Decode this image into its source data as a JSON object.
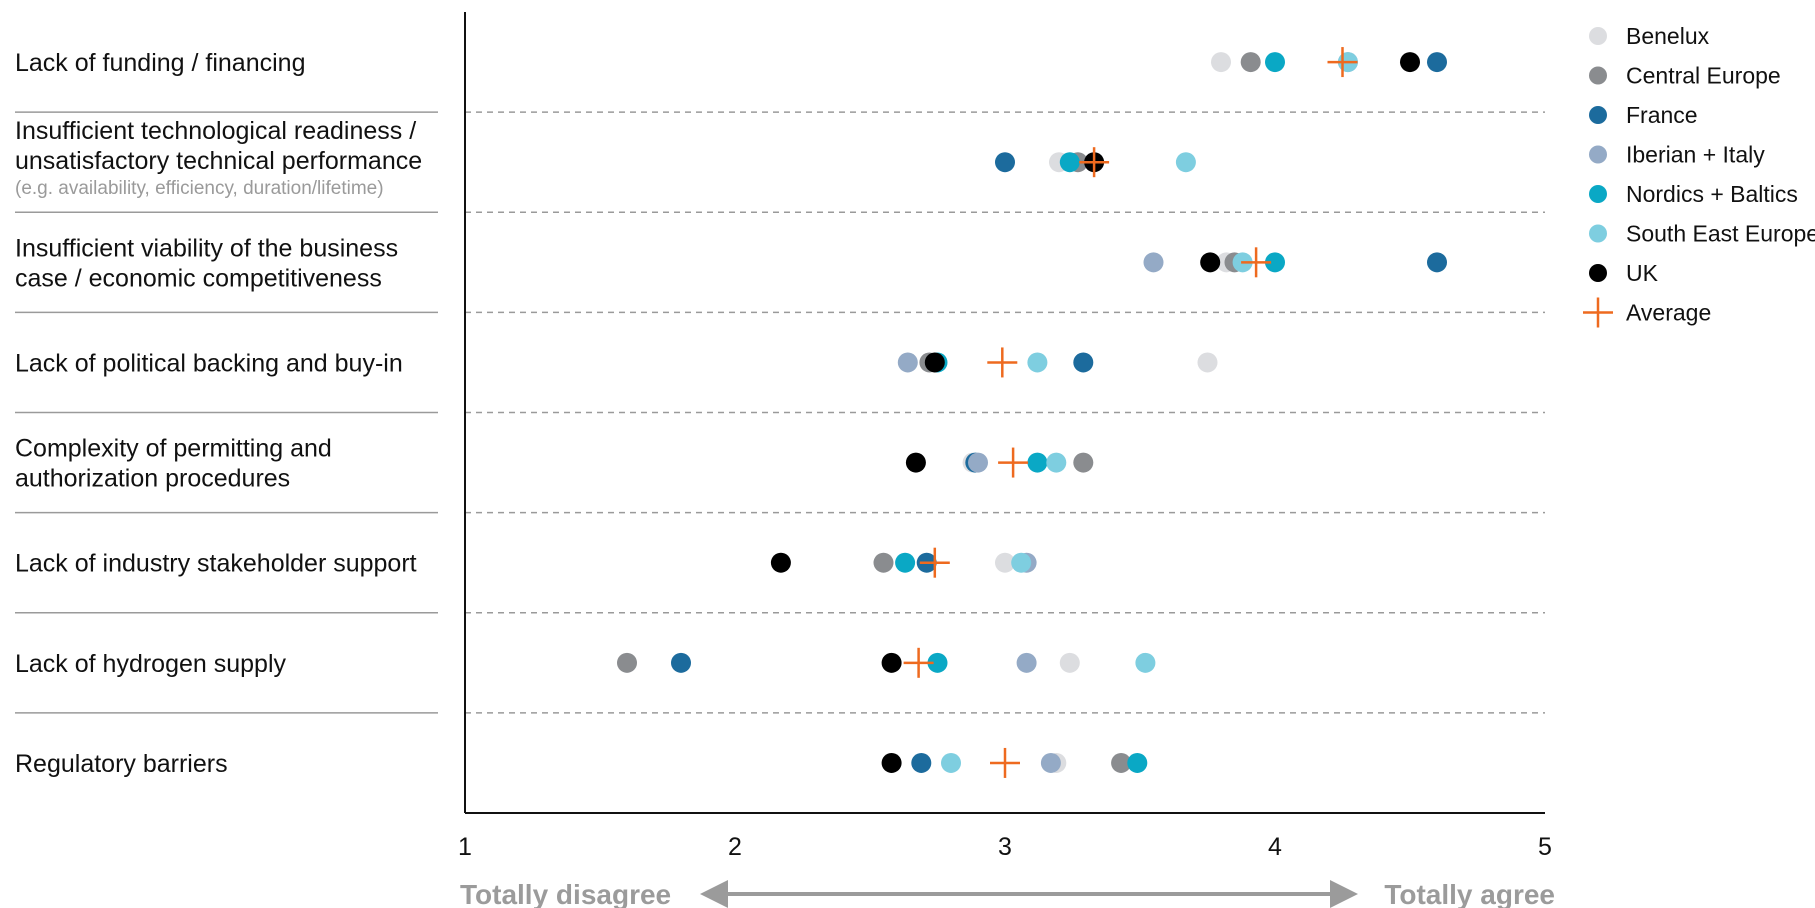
{
  "chart_data": {
    "type": "scatter",
    "xlim": [
      1,
      5
    ],
    "x_ticks": [
      1,
      2,
      3,
      4,
      5
    ],
    "x_tick_labels": [
      "1",
      "2",
      "3",
      "4",
      "5"
    ],
    "scale_left_label": "Totally disagree",
    "scale_right_label": "Totally agree",
    "legend_position": "top-right",
    "categories": [
      {
        "lines": [
          "Lack of funding / financing"
        ],
        "note": ""
      },
      {
        "lines": [
          "Insufficient technological readiness /",
          "unsatisfactory technical performance"
        ],
        "note": "(e.g. availability, efficiency, duration/lifetime)"
      },
      {
        "lines": [
          "Insufficient viability of the business",
          "case / economic competitiveness"
        ],
        "note": ""
      },
      {
        "lines": [
          "Lack of political backing and buy-in"
        ],
        "note": ""
      },
      {
        "lines": [
          "Complexity of permitting and",
          "authorization procedures"
        ],
        "note": ""
      },
      {
        "lines": [
          "Lack of industry stakeholder support"
        ],
        "note": ""
      },
      {
        "lines": [
          "Lack of hydrogen supply"
        ],
        "note": ""
      },
      {
        "lines": [
          "Regulatory barriers"
        ],
        "note": ""
      }
    ],
    "series": [
      {
        "name": "Benelux",
        "color": "#dcdde0",
        "marker": "circle",
        "values": [
          3.8,
          3.2,
          3.82,
          3.75,
          2.88,
          3.0,
          3.24,
          3.19
        ]
      },
      {
        "name": "Central Europe",
        "color": "#8a8c8f",
        "marker": "circle",
        "values": [
          3.91,
          3.27,
          3.85,
          2.72,
          3.29,
          2.55,
          1.6,
          3.43
        ]
      },
      {
        "name": "France",
        "color": "#1c6b9d",
        "marker": "circle",
        "values": [
          4.6,
          3.0,
          4.6,
          3.29,
          2.89,
          2.71,
          1.8,
          2.69
        ]
      },
      {
        "name": "Iberian + Italy",
        "color": "#94aac6",
        "marker": "circle",
        "values": [
          4.27,
          3.33,
          3.55,
          2.64,
          2.9,
          3.08,
          3.08,
          3.17
        ]
      },
      {
        "name": "Nordics + Baltics",
        "color": "#0aa8c5",
        "marker": "circle",
        "values": [
          4.0,
          3.24,
          4.0,
          2.75,
          3.12,
          2.63,
          2.75,
          3.49
        ]
      },
      {
        "name": "South East Europe",
        "color": "#7ecee0",
        "marker": "circle",
        "values": [
          4.27,
          3.67,
          3.88,
          3.12,
          3.19,
          3.06,
          3.52,
          2.8
        ]
      },
      {
        "name": "UK",
        "color": "#000000",
        "marker": "circle",
        "values": [
          4.5,
          3.33,
          3.76,
          2.74,
          2.67,
          2.17,
          2.58,
          2.58
        ]
      },
      {
        "name": "Average",
        "color": "#ee6a1f",
        "marker": "cross",
        "values": [
          4.25,
          3.33,
          3.93,
          2.99,
          3.03,
          2.74,
          2.68,
          3.0
        ]
      }
    ]
  }
}
